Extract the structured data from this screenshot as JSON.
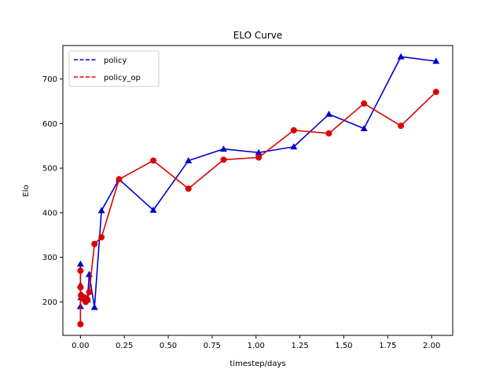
{
  "chart_data": {
    "type": "line",
    "title": "ELO Curve",
    "xlabel": "timestep/days",
    "ylabel": "Elo",
    "xlim": [
      -0.1,
      2.12
    ],
    "ylim": [
      125,
      775
    ],
    "xticks": [
      0.0,
      0.25,
      0.5,
      0.75,
      1.0,
      1.25,
      1.5,
      1.75,
      2.0
    ],
    "xtick_labels": [
      "0.00",
      "0.25",
      "0.50",
      "0.75",
      "1.00",
      "1.25",
      "1.50",
      "1.75",
      "2.00"
    ],
    "yticks": [
      200,
      300,
      400,
      500,
      600,
      700
    ],
    "ytick_labels": [
      "200",
      "300",
      "400",
      "500",
      "600",
      "700"
    ],
    "grid": false,
    "legend": {
      "placement": "top-left",
      "line_style": "dashed"
    },
    "series": [
      {
        "name": "policy",
        "color": "#0000cc",
        "marker": "triangle",
        "x": [
          0.0,
          0.0,
          0.0,
          0.003,
          0.01,
          0.02,
          0.03,
          0.04,
          0.05,
          0.08,
          0.12,
          0.22,
          0.415,
          0.615,
          0.815,
          1.015,
          1.215,
          1.415,
          1.615,
          1.825,
          2.025
        ],
        "y": [
          285,
          190,
          238,
          210,
          215,
          210,
          210,
          205,
          262,
          188,
          405,
          475,
          406,
          517,
          543,
          535,
          548,
          621,
          589,
          750,
          740
        ]
      },
      {
        "name": "policy_op",
        "color": "#dd0000",
        "marker": "circle",
        "x": [
          0.0,
          0.0,
          0.0,
          0.003,
          0.01,
          0.02,
          0.03,
          0.04,
          0.05,
          0.08,
          0.12,
          0.22,
          0.415,
          0.615,
          0.815,
          1.015,
          1.215,
          1.415,
          1.615,
          1.825,
          2.025
        ],
        "y": [
          270,
          150,
          233,
          215,
          208,
          210,
          200,
          205,
          222,
          330,
          345,
          475,
          517,
          454,
          519,
          524,
          585,
          578,
          645,
          595,
          671
        ]
      }
    ]
  }
}
